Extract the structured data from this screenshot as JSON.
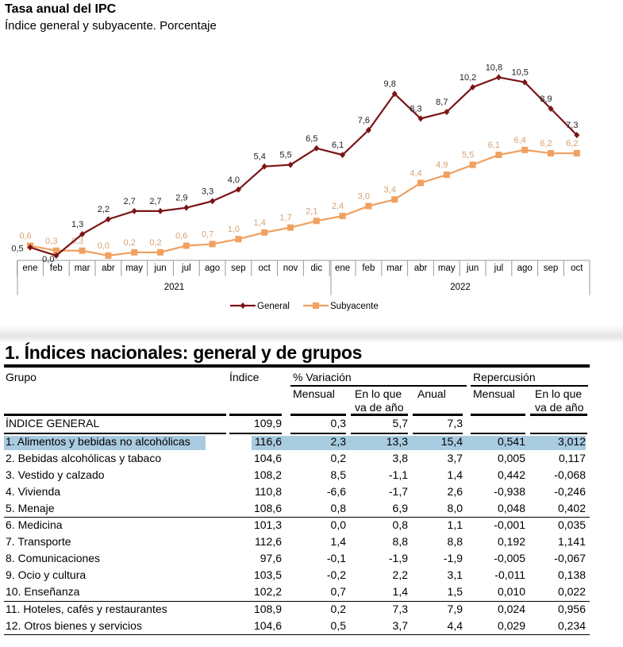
{
  "title": "Tasa anual del IPC",
  "subtitle": "Índice general y subyacente. Porcentaje",
  "chart_data": {
    "type": "line",
    "title": "Tasa anual del IPC",
    "subtitle": "Índice general y subyacente. Porcentaje",
    "categories": [
      "ene",
      "feb",
      "mar",
      "abr",
      "may",
      "jun",
      "jul",
      "ago",
      "sep",
      "oct",
      "nov",
      "dic",
      "ene",
      "feb",
      "mar",
      "abr",
      "may",
      "jun",
      "jul",
      "ago",
      "sep",
      "oct"
    ],
    "years": [
      "2021",
      "2022"
    ],
    "series": [
      {
        "name": "General",
        "color": "#7b1416",
        "marker": "diamond",
        "values": [
          0.5,
          0.0,
          1.3,
          2.2,
          2.7,
          2.7,
          2.9,
          3.3,
          4.0,
          5.4,
          5.5,
          6.5,
          6.1,
          7.6,
          9.8,
          8.3,
          8.7,
          10.2,
          10.8,
          10.5,
          8.9,
          7.3
        ],
        "labels": [
          "0,5",
          "0,0",
          "1,3",
          "2,2",
          "2,7",
          "2,7",
          "2,9",
          "3,3",
          "4,0",
          "5,4",
          "5,5",
          "6,5",
          "6,1",
          "7,6",
          "9,8",
          "8,3",
          "8,7",
          "10,2",
          "10,8",
          "10,5",
          "8,9",
          "7,3"
        ]
      },
      {
        "name": "Subyacente",
        "color": "#f0a060",
        "marker": "square",
        "values": [
          0.6,
          0.3,
          0.3,
          0.0,
          0.2,
          0.2,
          0.6,
          0.7,
          1.0,
          1.4,
          1.7,
          2.1,
          2.4,
          3.0,
          3.4,
          4.4,
          4.9,
          5.5,
          6.1,
          6.4,
          6.2,
          6.2
        ],
        "labels": [
          "0,6",
          "0,3",
          "0,3",
          "0,0",
          "0,2",
          "0,2",
          "0,6",
          "0,7",
          "1,0",
          "1,4",
          "1,7",
          "2,1",
          "2,4",
          "3,0",
          "3,4",
          "4,4",
          "4,9",
          "5,5",
          "6,1",
          "6,4",
          "6,2",
          "6,2"
        ]
      }
    ],
    "legend": "bottom",
    "grid": false
  },
  "table": {
    "title": "1. Índices nacionales: general y de grupos",
    "headers": {
      "grupo": "Grupo",
      "indice": "Índice",
      "variacion": "% Variación",
      "repercusion": "Repercusión",
      "mensual": "Mensual",
      "en_lo_que_1": "En lo que",
      "en_lo_que_2": "va de año",
      "anual": "Anual",
      "rep_mensual": "Mensual",
      "rep_en_lo_que_1": "En lo que",
      "rep_en_lo_que_2": "va de año"
    },
    "rows": [
      [
        "ÍNDICE GENERAL",
        "109,9",
        "0,3",
        "5,7",
        "7,3",
        "",
        ""
      ],
      [
        "1. Alimentos y bebidas no alcohólicas",
        "116,6",
        "2,3",
        "13,3",
        "15,4",
        "0,541",
        "3,012"
      ],
      [
        "2. Bebidas alcohólicas y tabaco",
        "104,6",
        "0,2",
        "3,8",
        "3,7",
        "0,005",
        "0,117"
      ],
      [
        "3. Vestido y calzado",
        "108,2",
        "8,5",
        "-1,1",
        "1,4",
        "0,442",
        "-0,068"
      ],
      [
        "4. Vivienda",
        "110,8",
        "-6,6",
        "-1,7",
        "2,6",
        "-0,938",
        "-0,246"
      ],
      [
        "5. Menaje",
        "108,6",
        "0,8",
        "6,9",
        "8,0",
        "0,048",
        "0,402"
      ],
      [
        "6. Medicina",
        "101,3",
        "0,0",
        "0,8",
        "1,1",
        "-0,001",
        "0,035"
      ],
      [
        "7. Transporte",
        "112,6",
        "1,4",
        "8,8",
        "8,8",
        "0,192",
        "1,141"
      ],
      [
        "8. Comunicaciones",
        "97,6",
        "-0,1",
        "-1,9",
        "-1,9",
        "-0,005",
        "-0,067"
      ],
      [
        "9. Ocio y cultura",
        "103,5",
        "-0,2",
        "2,2",
        "3,1",
        "-0,011",
        "0,138"
      ],
      [
        "10. Enseñanza",
        "102,2",
        "0,7",
        "1,4",
        "1,5",
        "0,010",
        "0,022"
      ],
      [
        "11. Hoteles, cafés y restaurantes",
        "108,9",
        "0,2",
        "7,3",
        "7,9",
        "0,024",
        "0,956"
      ],
      [
        "12. Otros bienes y servicios",
        "104,6",
        "0,5",
        "3,7",
        "4,4",
        "0,029",
        "0,234"
      ]
    ],
    "highlight_color": "#a9cbe0"
  }
}
